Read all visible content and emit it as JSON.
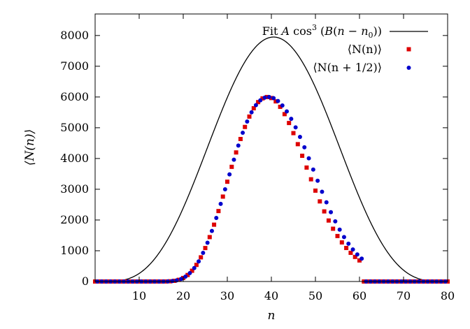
{
  "chart_data": {
    "type": "scatter",
    "xlabel": "n",
    "ylabel": "⟨N(n)⟩",
    "xlim": [
      0,
      80
    ],
    "ylim": [
      0,
      8700
    ],
    "xticks": [
      10,
      20,
      30,
      40,
      50,
      60,
      70,
      80
    ],
    "yticks": [
      0,
      1000,
      2000,
      3000,
      4000,
      5000,
      6000,
      7000,
      8000
    ],
    "grid": false,
    "legend_position": "top-right",
    "fit": {
      "label_parts": [
        "Fit ",
        "A",
        " cos",
        "3",
        " (",
        "B",
        "(",
        "n",
        " − ",
        "n",
        "0",
        "))"
      ],
      "color": "#000000",
      "A": 7950,
      "B": 0.0408,
      "n0": 40.5
    },
    "series": [
      {
        "name": "⟨N(n)⟩",
        "marker": "square",
        "color": "#dd0000",
        "x": [
          0,
          1,
          2,
          3,
          4,
          5,
          6,
          7,
          8,
          9,
          10,
          11,
          12,
          13,
          14,
          15,
          16,
          17,
          18,
          19,
          20,
          21,
          22,
          23,
          24,
          25,
          26,
          27,
          28,
          29,
          30,
          31,
          32,
          33,
          34,
          35,
          36,
          37,
          38,
          39,
          40,
          41,
          42,
          43,
          44,
          45,
          46,
          47,
          48,
          49,
          50,
          51,
          52,
          53,
          54,
          55,
          56,
          57,
          58,
          59,
          60,
          61,
          62,
          63,
          64,
          65,
          66,
          67,
          68,
          69,
          70,
          71,
          72,
          73,
          74,
          75,
          76,
          77,
          78,
          79,
          80
        ],
        "y": [
          0,
          0,
          0,
          0,
          0,
          0,
          0,
          0,
          0,
          0,
          0,
          0,
          0,
          0,
          0,
          0,
          1,
          7,
          23,
          55,
          115,
          211,
          350,
          540,
          786,
          1088,
          1444,
          1848,
          2291,
          2761,
          3245,
          3729,
          4197,
          4634,
          5026,
          5363,
          5634,
          5833,
          5955,
          5999,
          5966,
          5858,
          5681,
          5443,
          5154,
          4825,
          4466,
          4089,
          3705,
          3324,
          2955,
          2605,
          2280,
          1983,
          1716,
          1479,
          1271,
          1090,
          933,
          799,
          685,
          0,
          0,
          0,
          0,
          0,
          0,
          0,
          0,
          0,
          0,
          0,
          0,
          0,
          0,
          0,
          0,
          0,
          0,
          0,
          0
        ]
      },
      {
        "name": "⟨N(n + 1/2)⟩",
        "marker": "circle",
        "color": "#0000cc",
        "x": [
          0.5,
          1.5,
          2.5,
          3.5,
          4.5,
          5.5,
          6.5,
          7.5,
          8.5,
          9.5,
          10.5,
          11.5,
          12.5,
          13.5,
          14.5,
          15.5,
          16.5,
          17.5,
          18.5,
          19.5,
          20.5,
          21.5,
          22.5,
          23.5,
          24.5,
          25.5,
          26.5,
          27.5,
          28.5,
          29.5,
          30.5,
          31.5,
          32.5,
          33.5,
          34.5,
          35.5,
          36.5,
          37.5,
          38.5,
          39.5,
          40.5,
          41.5,
          42.5,
          43.5,
          44.5,
          45.5,
          46.5,
          47.5,
          48.5,
          49.5,
          50.5,
          51.5,
          52.5,
          53.5,
          54.5,
          55.5,
          56.5,
          57.5,
          58.5,
          59.5,
          60.5,
          61.5,
          62.5,
          63.5,
          64.5,
          65.5,
          66.5,
          67.5,
          68.5,
          69.5,
          70.5,
          71.5,
          72.5,
          73.5,
          74.5,
          75.5,
          76.5,
          77.5,
          78.5,
          79.5
        ],
        "y": [
          0,
          0,
          0,
          0,
          0,
          0,
          0,
          0,
          0,
          0,
          0,
          0,
          0,
          0,
          0,
          0,
          3,
          13,
          36,
          81,
          160,
          274,
          438,
          654,
          931,
          1262,
          1643,
          2068,
          2523,
          2999,
          3483,
          3961,
          4420,
          4837,
          5201,
          5503,
          5735,
          5893,
          5980,
          6000,
          5962,
          5869,
          5724,
          5530,
          5291,
          5013,
          4701,
          4363,
          4007,
          3641,
          3276,
          2918,
          2576,
          2254,
          1957,
          1687,
          1444,
          1229,
          1042,
          881,
          744,
          0,
          0,
          0,
          0,
          0,
          0,
          0,
          0,
          0,
          0,
          0,
          0,
          0,
          0,
          0,
          0,
          0,
          0,
          0
        ]
      }
    ]
  }
}
